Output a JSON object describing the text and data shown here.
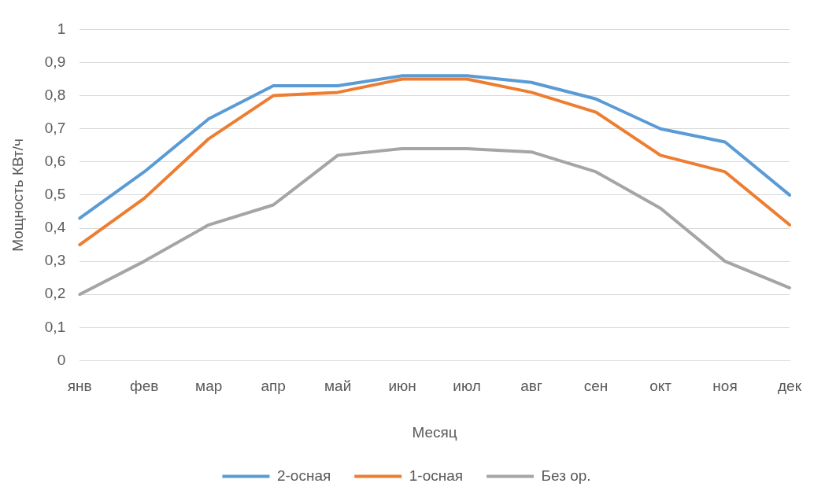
{
  "chart_data": {
    "type": "line",
    "xlabel": "Месяц",
    "ylabel": "Мощность КВт/ч",
    "categories": [
      "янв",
      "фев",
      "мар",
      "апр",
      "май",
      "июн",
      "июл",
      "авг",
      "сен",
      "окт",
      "ноя",
      "дек"
    ],
    "series": [
      {
        "name": "2-осная",
        "color": "#5b9bd5",
        "values": [
          0.43,
          0.57,
          0.73,
          0.83,
          0.83,
          0.86,
          0.86,
          0.84,
          0.79,
          0.7,
          0.66,
          0.5
        ]
      },
      {
        "name": "1-осная",
        "color": "#ed7d31",
        "values": [
          0.35,
          0.49,
          0.67,
          0.8,
          0.81,
          0.85,
          0.85,
          0.81,
          0.75,
          0.62,
          0.57,
          0.41
        ]
      },
      {
        "name": "Без ор.",
        "color": "#a5a5a5",
        "values": [
          0.2,
          0.3,
          0.41,
          0.47,
          0.62,
          0.64,
          0.64,
          0.63,
          0.57,
          0.46,
          0.3,
          0.22
        ]
      }
    ],
    "ylim": [
      0,
      1
    ],
    "yticks": [
      0,
      {
        "value": 0.1,
        "label": "0,1"
      },
      {
        "value": 0.2,
        "label": "0,2"
      },
      {
        "value": 0.3,
        "label": "0,3"
      },
      {
        "value": 0.4,
        "label": "0,4"
      },
      {
        "value": 0.5,
        "label": "0,5"
      },
      {
        "value": 0.6,
        "label": "0,6"
      },
      {
        "value": 0.7,
        "label": "0,7"
      },
      {
        "value": 0.8,
        "label": "0,8"
      },
      {
        "value": 0.9,
        "label": "0,9"
      },
      1
    ],
    "grid": "y",
    "legend": "bottom",
    "marker": "none",
    "line_style": "solid"
  }
}
